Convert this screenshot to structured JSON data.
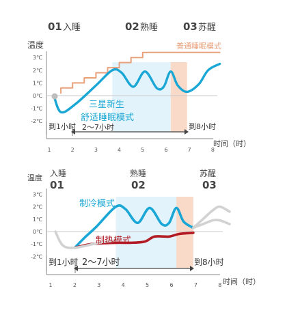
{
  "chart_data": [
    {
      "type": "line",
      "phases": [
        {
          "num": "01",
          "name": "入睡"
        },
        {
          "num": "02",
          "name": "熟睡"
        },
        {
          "num": "03",
          "name": "苏醒"
        }
      ],
      "ylabel": "温度",
      "xlabel": "时间（时）",
      "x_ticks": [
        "1",
        "2",
        "3",
        "4",
        "5",
        "6",
        "7",
        "8"
      ],
      "y_ticks": [
        "3℃",
        "2℃",
        "1℃",
        "0℃",
        "-1℃",
        "-2℃"
      ],
      "xlim": [
        1,
        8
      ],
      "ylim": [
        -2,
        3
      ],
      "series": [
        {
          "name": "普通睡眠模式",
          "color": "#e8a07a",
          "x": [
            1.5,
            1.5,
            2.0,
            2.0,
            2.5,
            2.5,
            3.0,
            3.0,
            3.5,
            3.5,
            4.0,
            4.0,
            4.5,
            4.5,
            5.0,
            5.0,
            8.3
          ],
          "y": [
            0.2,
            0.6,
            0.6,
            1.0,
            1.0,
            1.4,
            1.4,
            1.8,
            1.8,
            2.2,
            2.2,
            2.6,
            2.6,
            3.0,
            3.0,
            3.4,
            3.4
          ]
        },
        {
          "name": "三星新生舒适睡眠模式",
          "color": "#1aa7d6",
          "x": [
            1.2,
            1.5,
            2.1,
            3.0,
            3.7,
            4.1,
            4.6,
            5.1,
            5.6,
            5.9,
            6.2,
            6.5,
            6.9,
            7.4,
            7.8,
            8.3
          ],
          "y": [
            0.0,
            -1.3,
            -0.7,
            0.8,
            2.0,
            1.8,
            0.7,
            1.9,
            0.6,
            0.7,
            1.9,
            0.8,
            0.3,
            0.9,
            2.0,
            2.5
          ]
        }
      ],
      "shaded_regions": [
        {
          "x": [
            3.7,
            6.2
          ],
          "color": "#e3f3fb"
        },
        {
          "x": [
            6.2,
            6.9
          ],
          "color": "#f9d9c8"
        }
      ],
      "annotations": {
        "start": "到1小时",
        "mid": "2～7小时",
        "end": "到8小时"
      }
    },
    {
      "type": "line",
      "phases": [
        {
          "num": "01",
          "name": "入睡"
        },
        {
          "num": "02",
          "name": "熟睡"
        },
        {
          "num": "03",
          "name": "苏醒"
        }
      ],
      "ylabel": "温度",
      "xlabel": "时间（时）",
      "x_ticks": [
        "1",
        "2",
        "3",
        "4",
        "5",
        "6",
        "7",
        "8"
      ],
      "y_ticks": [
        "3℃",
        "2℃",
        "1℃",
        "0℃",
        "-1℃",
        "-2℃"
      ],
      "xlim": [
        1,
        8
      ],
      "ylim": [
        -2,
        3
      ],
      "series": [
        {
          "name": "制冷模式",
          "color": "#1aa7d6",
          "x": [
            2.0,
            2.4,
            2.9,
            3.7,
            4.1,
            4.6,
            5.1,
            5.6,
            5.9,
            6.2,
            6.5,
            6.9
          ],
          "y": [
            -1.3,
            -0.5,
            0.4,
            2.0,
            1.8,
            0.7,
            1.9,
            0.6,
            0.7,
            1.9,
            0.8,
            0.3
          ]
        },
        {
          "name": "制热模式",
          "color": "#b31b24",
          "x": [
            2.0,
            2.7,
            3.7,
            4.3,
            4.9,
            5.3,
            5.9,
            6.3,
            6.9
          ],
          "y": [
            -1.3,
            -1.0,
            -0.9,
            -0.9,
            -0.8,
            -0.4,
            -0.4,
            -0.2,
            -0.1
          ]
        },
        {
          "name": "",
          "color": "#d2d2d2",
          "x": [
            1.2,
            1.5,
            2.0,
            3.0,
            3.7
          ],
          "y": [
            0.0,
            -1.1,
            -1.3,
            -0.9,
            -0.7
          ]
        },
        {
          "name": "",
          "color": "#d2d2d2",
          "x": [
            6.9,
            7.3,
            7.7,
            8.0,
            8.4
          ],
          "y": [
            0.3,
            1.0,
            1.7,
            2.0,
            1.6
          ]
        },
        {
          "name": "",
          "color": "#d2d2d2",
          "x": [
            6.9,
            7.3,
            7.7,
            8.0,
            8.4
          ],
          "y": [
            0.3,
            0.6,
            0.9,
            0.9,
            0.6
          ]
        }
      ],
      "shaded_regions": [
        {
          "x": [
            3.7,
            6.2
          ],
          "color": "#e3f3fb"
        },
        {
          "x": [
            6.2,
            6.9
          ],
          "color": "#f9d9c8"
        }
      ],
      "annotations": {
        "start": "到1小时",
        "mid": "2～7小时",
        "end": "到8小时"
      }
    }
  ]
}
